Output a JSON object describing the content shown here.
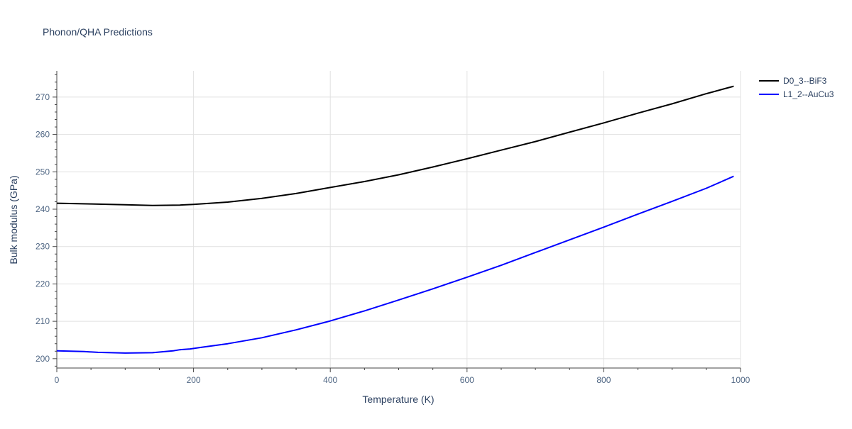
{
  "chart_data": {
    "type": "line",
    "title": "Phonon/QHA Predictions",
    "xlabel": "Temperature (K)",
    "ylabel": "Bulk modulus (GPa)",
    "xlim": [
      0,
      1000
    ],
    "ylim": [
      197.5,
      277
    ],
    "xticks": [
      0,
      200,
      400,
      600,
      800,
      1000
    ],
    "yticks": [
      200,
      210,
      220,
      230,
      240,
      250,
      260,
      270
    ],
    "grid": true,
    "legend_position": "top-right",
    "series": [
      {
        "name": "D0_3--BiF3",
        "color": "#000000",
        "x": [
          0,
          50,
          100,
          140,
          180,
          200,
          250,
          300,
          350,
          400,
          450,
          500,
          550,
          600,
          650,
          700,
          750,
          800,
          850,
          900,
          950,
          990
        ],
        "y": [
          241.6,
          241.4,
          241.2,
          241.0,
          241.1,
          241.3,
          241.9,
          242.9,
          244.2,
          245.8,
          247.4,
          249.2,
          251.3,
          253.5,
          255.8,
          258.1,
          260.6,
          263.1,
          265.7,
          268.2,
          270.9,
          272.9
        ]
      },
      {
        "name": "L1_2--AuCu3",
        "color": "#0000ff",
        "x": [
          0,
          40,
          60,
          100,
          140,
          170,
          180,
          195,
          210,
          250,
          300,
          350,
          400,
          450,
          500,
          550,
          600,
          650,
          700,
          750,
          800,
          850,
          900,
          950,
          990
        ],
        "y": [
          202.1,
          201.9,
          201.7,
          201.5,
          201.6,
          202.1,
          202.4,
          202.6,
          203.0,
          204.0,
          205.6,
          207.7,
          210.1,
          212.8,
          215.7,
          218.7,
          221.8,
          225.0,
          228.4,
          231.8,
          235.2,
          238.7,
          242.1,
          245.6,
          248.8
        ]
      }
    ]
  }
}
